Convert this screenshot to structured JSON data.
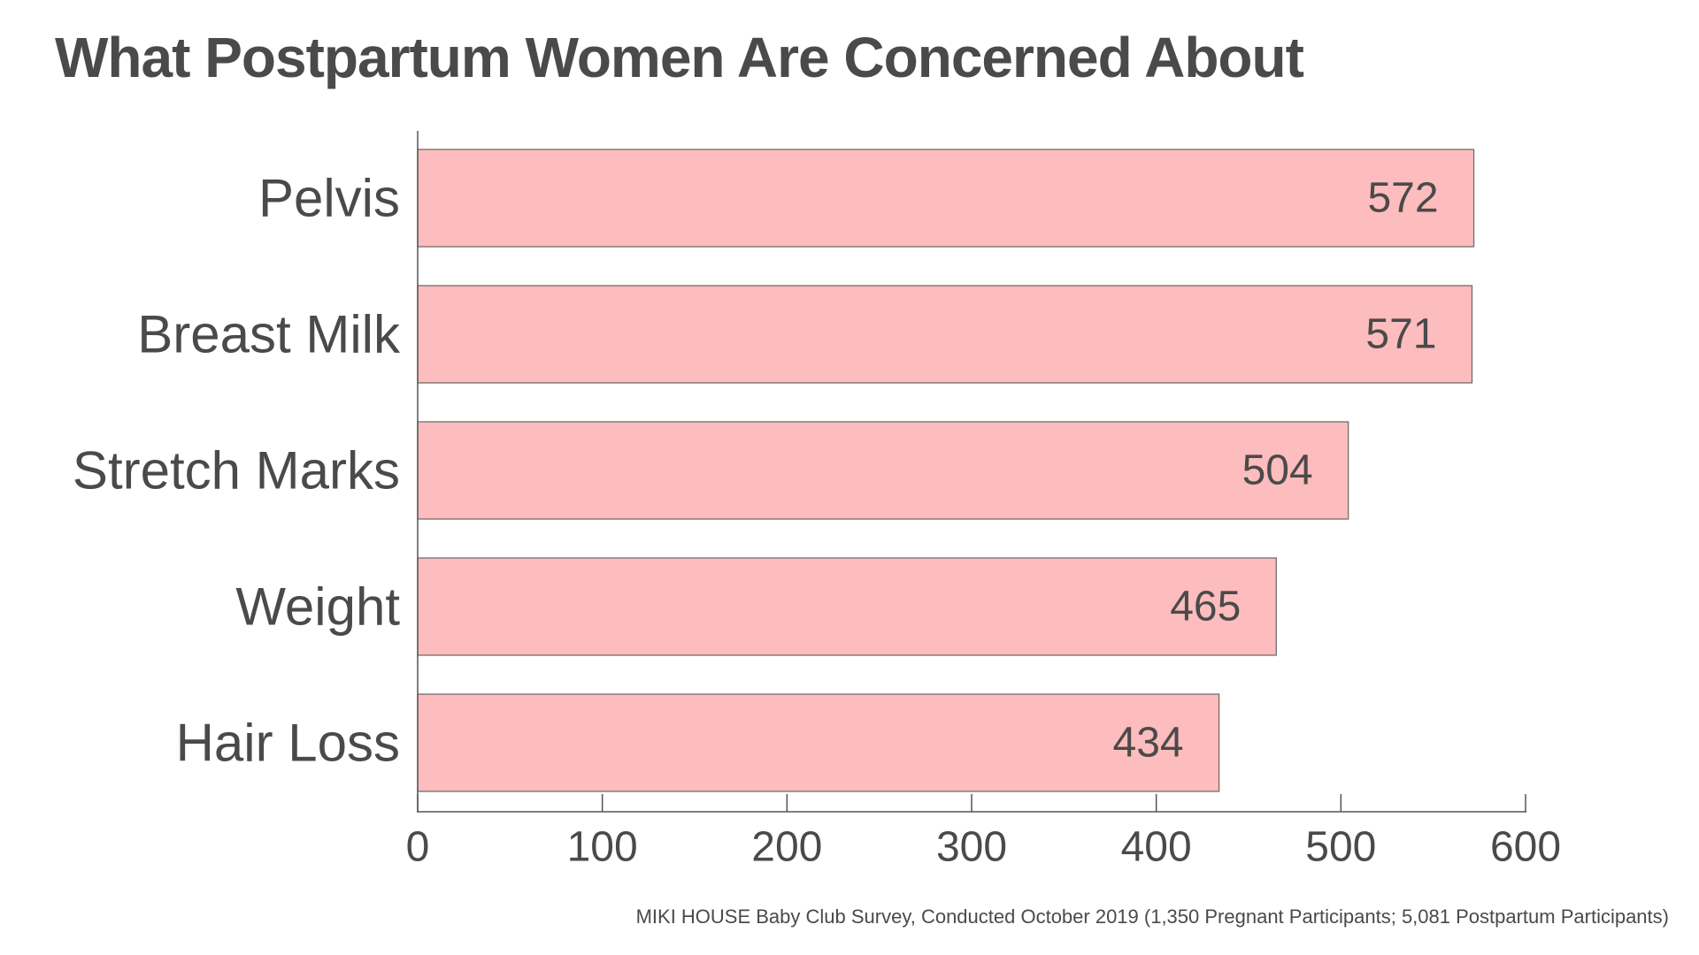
{
  "chart_data": {
    "type": "bar",
    "orientation": "horizontal",
    "title": "What Postpartum Women Are Concerned About",
    "categories": [
      "Pelvis",
      "Breast Milk",
      "Stretch Marks",
      "Weight",
      "Hair Loss"
    ],
    "values": [
      572,
      571,
      504,
      465,
      434
    ],
    "xlim": [
      0,
      600
    ],
    "xticks": [
      "0",
      "100",
      "200",
      "300",
      "400",
      "500",
      "600"
    ],
    "xlabel": "",
    "ylabel": "",
    "grid": false,
    "legend": "none",
    "bar_color": "#fdbcbd",
    "bar_edge_color": "#666666",
    "text_color": "#4a4a4a"
  },
  "source_note": "MIKI HOUSE Baby Club Survey, Conducted October 2019 (1,350 Pregnant Participants; 5,081 Postpartum Participants)"
}
